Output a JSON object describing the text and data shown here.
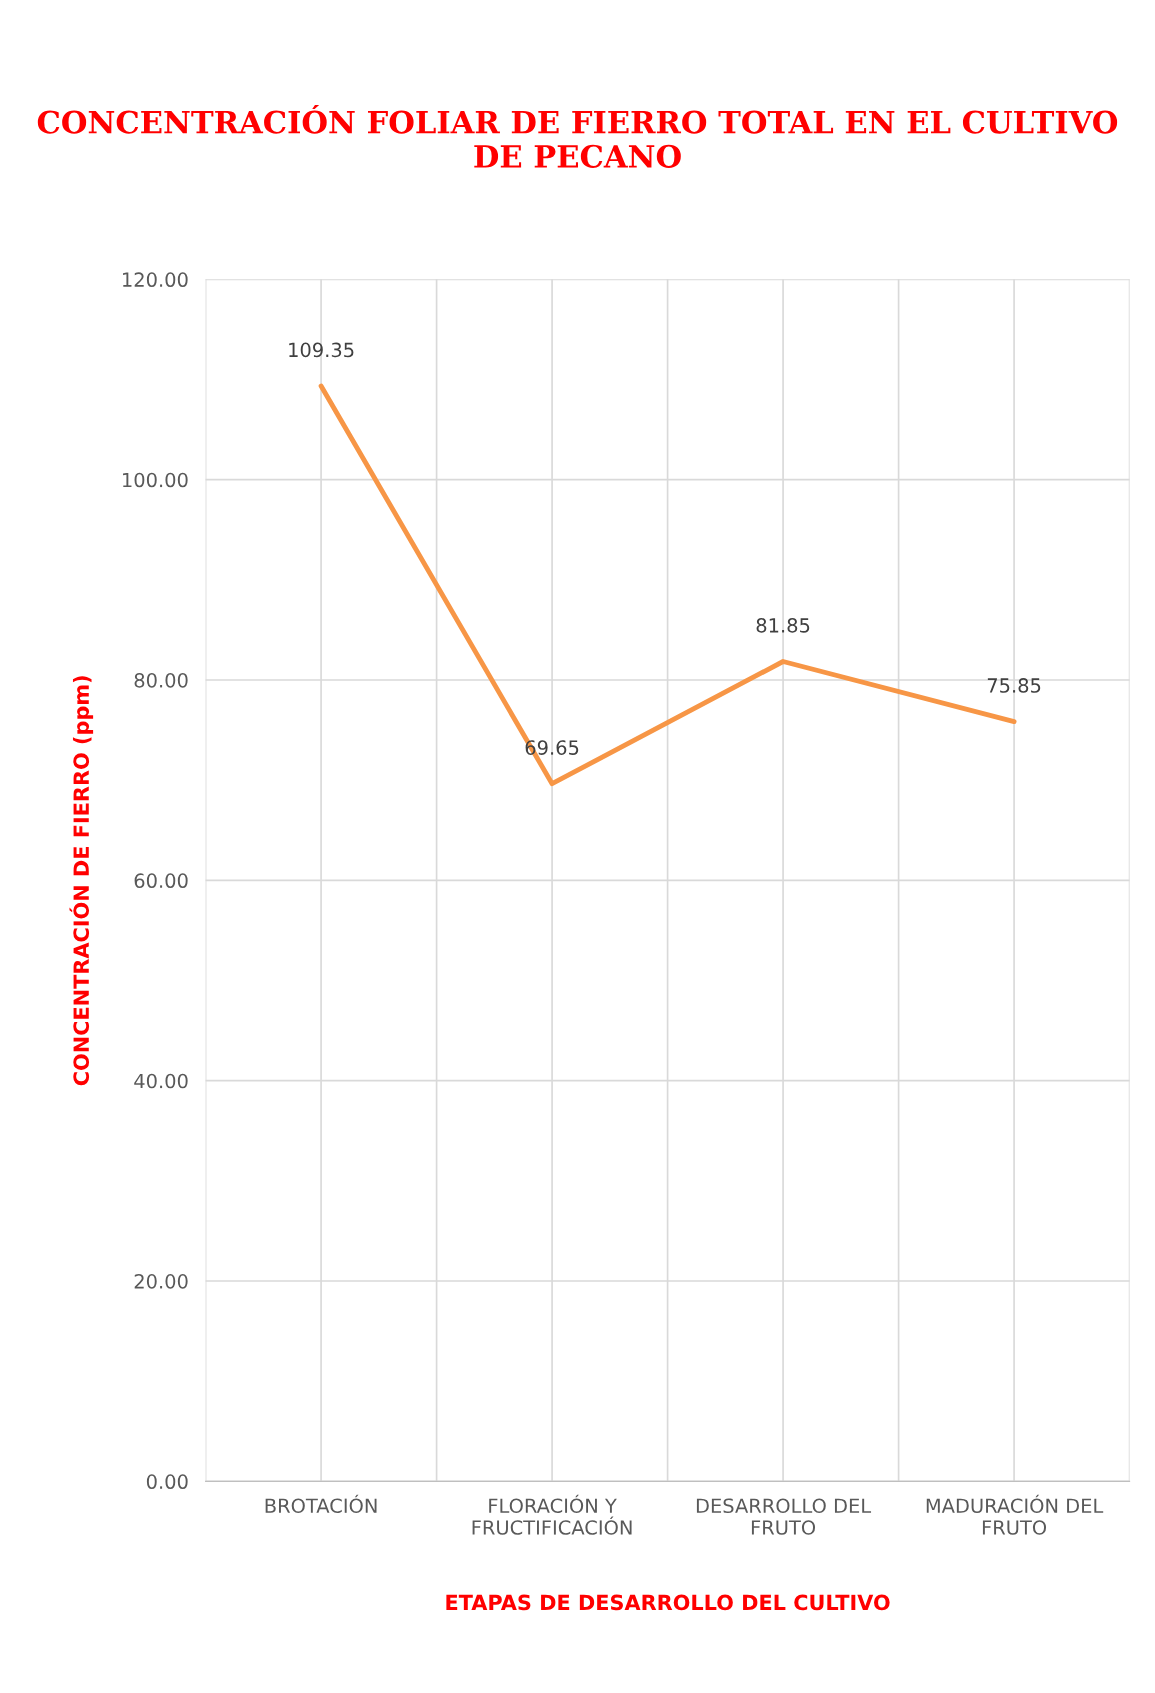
{
  "chart_data": {
    "type": "line",
    "title": "CONCENTRACIÓN FOLIAR DE FIERRO TOTAL EN EL CULTIVO\nDE PECANO",
    "xlabel": "ETAPAS DE DESARROLLO DEL CULTIVO",
    "ylabel": "CONCENTRACIÓN DE FIERRO (ppm)",
    "categories": [
      "BROTACIÓN",
      "FLORACIÓN Y\nFRUCTIFICACIÓN",
      "DESARROLLO DEL\nFRUTO",
      "MADURACIÓN DEL\nFRUTO"
    ],
    "series": [
      {
        "color": "#f79646",
        "values": [
          109.35,
          69.65,
          81.85,
          75.85
        ]
      }
    ],
    "ylim": [
      0,
      120
    ],
    "yticks": [
      {
        "value": 0,
        "label": "0.00"
      },
      {
        "value": 20,
        "label": "20.00"
      },
      {
        "value": 40,
        "label": "40.00"
      },
      {
        "value": 60,
        "label": "60.00"
      },
      {
        "value": 80,
        "label": "80.00"
      },
      {
        "value": 100,
        "label": "100.00"
      },
      {
        "value": 120,
        "label": "120.00"
      }
    ],
    "data_labels": true,
    "grid": true,
    "marker": "none",
    "line_style": "solid"
  }
}
